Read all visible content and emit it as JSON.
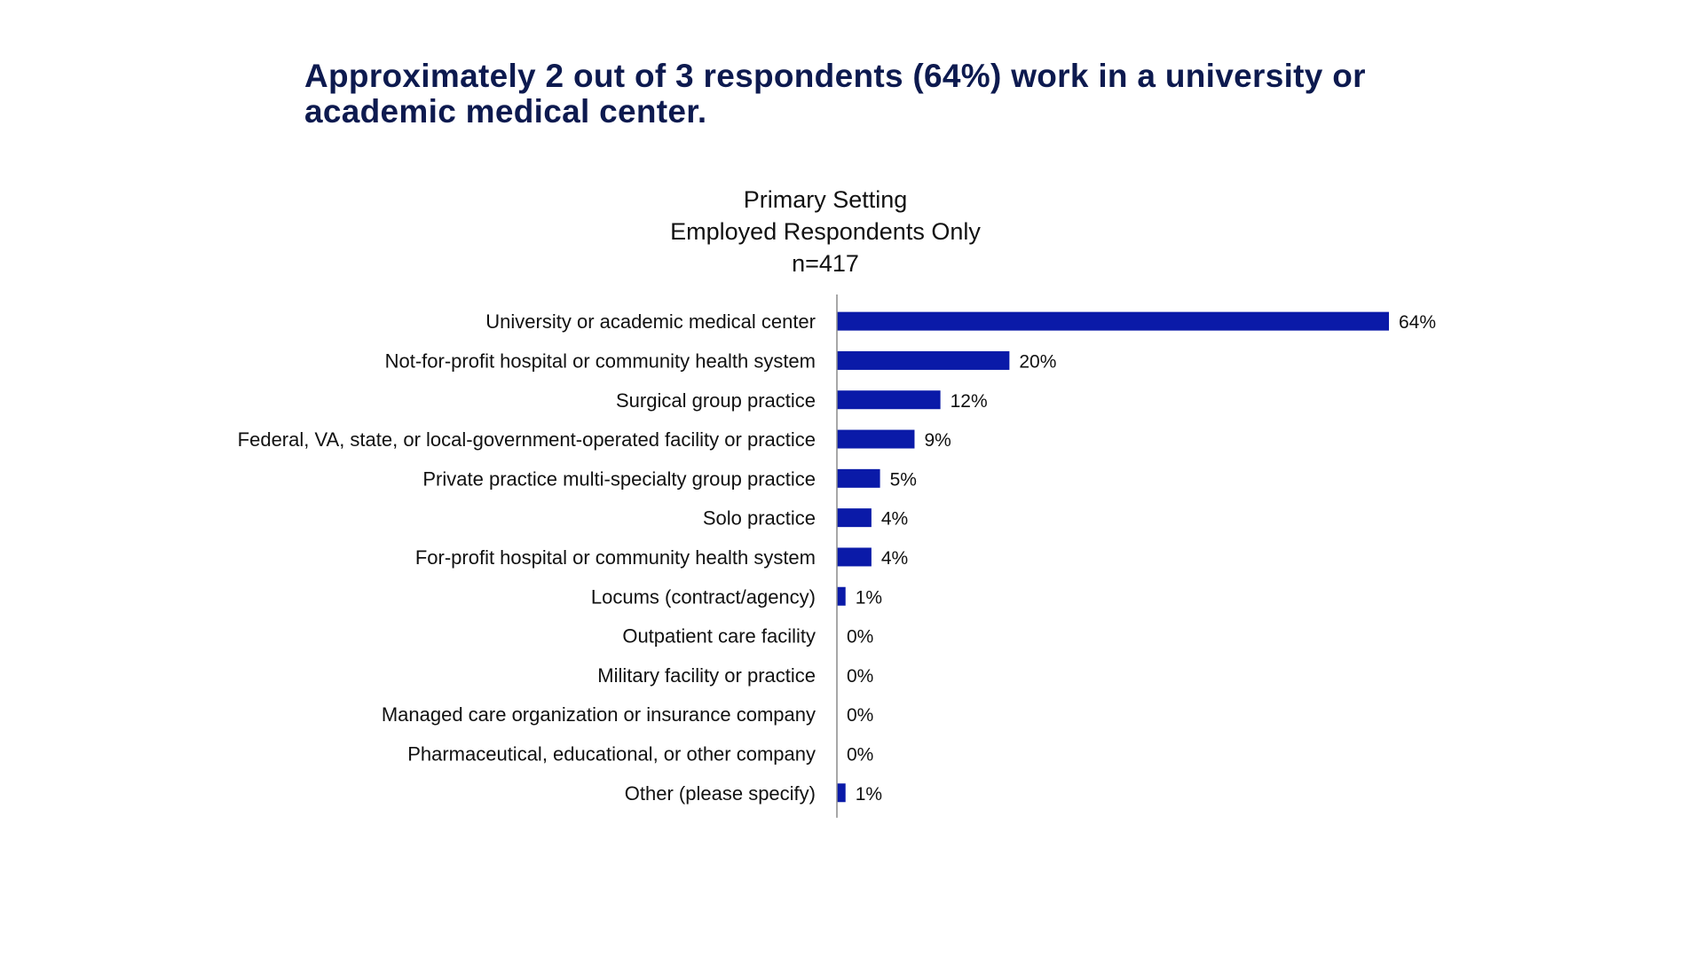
{
  "slide_title": "Approximately 2 out of 3 respondents (64%) work in a university or academic medical center.",
  "chart_data": {
    "type": "bar",
    "orientation": "horizontal",
    "title": "Primary Setting",
    "subtitle": "Employed Respondents Only",
    "sample": "n=417",
    "categories": [
      "University or academic medical center",
      "Not-for-profit hospital or community health system",
      "Surgical group practice",
      "Federal, VA, state, or local-government-operated facility or practice",
      "Private practice multi-specialty group practice",
      "Solo practice",
      "For-profit hospital or community health system",
      "Locums (contract/agency)",
      "Outpatient care facility",
      "Military facility or practice",
      "Managed care organization or insurance company",
      "Pharmaceutical, educational, or other company",
      "Other (please specify)"
    ],
    "values": [
      64,
      20,
      12,
      9,
      5,
      4,
      4,
      1,
      0,
      0,
      0,
      0,
      1
    ],
    "value_labels": [
      "64%",
      "20%",
      "12%",
      "9%",
      "5%",
      "4%",
      "4%",
      "1%",
      "0%",
      "0%",
      "0%",
      "0%",
      "1%"
    ],
    "unit": "%",
    "xlim": [
      0,
      64
    ],
    "bar_color": "#0a1aa8",
    "axis_color": "#8c8c8c",
    "xlabel": "",
    "ylabel": "",
    "grid": false
  }
}
